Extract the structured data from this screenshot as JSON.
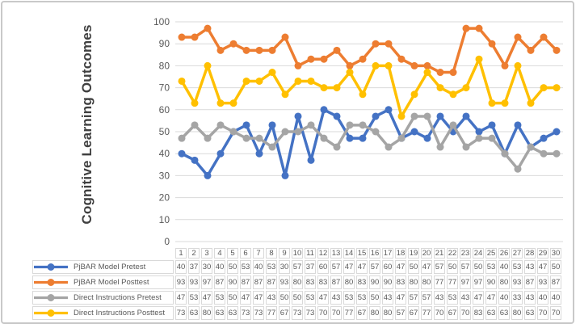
{
  "chart_data": {
    "type": "line",
    "title": "",
    "ylabel": "Cognitive Learning Outcomes",
    "xlabel": "",
    "ylim": [
      0,
      100
    ],
    "yticks": [
      0,
      10,
      20,
      30,
      40,
      50,
      60,
      70,
      80,
      90,
      100
    ],
    "grid": true,
    "legend_position": "data-table-left",
    "marker": "circle",
    "categories": [
      "1",
      "2",
      "3",
      "4",
      "5",
      "6",
      "7",
      "8",
      "9",
      "10",
      "11",
      "12",
      "13",
      "14",
      "15",
      "16",
      "17",
      "18",
      "19",
      "20",
      "21",
      "22",
      "23",
      "24",
      "25",
      "26",
      "27",
      "28",
      "29",
      "30"
    ],
    "series": [
      {
        "name": "PjBAR Model Pretest",
        "color": "#4472C4",
        "values": [
          40,
          37,
          30,
          40,
          50,
          53,
          40,
          53,
          30,
          57,
          37,
          60,
          57,
          47,
          47,
          57,
          60,
          47,
          50,
          47,
          57,
          50,
          57,
          50,
          53,
          40,
          53,
          43,
          47,
          50
        ]
      },
      {
        "name": "PjBAR Model Posttest",
        "color": "#ED7D31",
        "values": [
          93,
          93,
          97,
          87,
          90,
          87,
          87,
          87,
          93,
          80,
          83,
          83,
          87,
          80,
          83,
          90,
          90,
          83,
          80,
          80,
          77,
          77,
          97,
          97,
          90,
          80,
          93,
          87,
          93,
          87
        ]
      },
      {
        "name": "Direct Instructions Pretest",
        "color": "#A5A5A5",
        "values": [
          47,
          53,
          47,
          53,
          50,
          47,
          47,
          43,
          50,
          50,
          53,
          47,
          43,
          53,
          53,
          50,
          43,
          47,
          57,
          57,
          43,
          53,
          43,
          47,
          47,
          40,
          33,
          43,
          40,
          40
        ]
      },
      {
        "name": "Direct Instructions Posttest",
        "color": "#FFC000",
        "values": [
          73,
          63,
          80,
          63,
          63,
          73,
          73,
          77,
          67,
          73,
          73,
          70,
          70,
          77,
          67,
          80,
          80,
          57,
          67,
          77,
          70,
          67,
          70,
          83,
          63,
          63,
          80,
          63,
          70,
          70
        ]
      }
    ]
  },
  "colors": {
    "grid": "#D9D9D9",
    "axis_text": "#595959",
    "table_border": "#D9D9D9",
    "table_text": "#595959",
    "frame_border": "#C9C9C9",
    "title_text": "#404040"
  }
}
